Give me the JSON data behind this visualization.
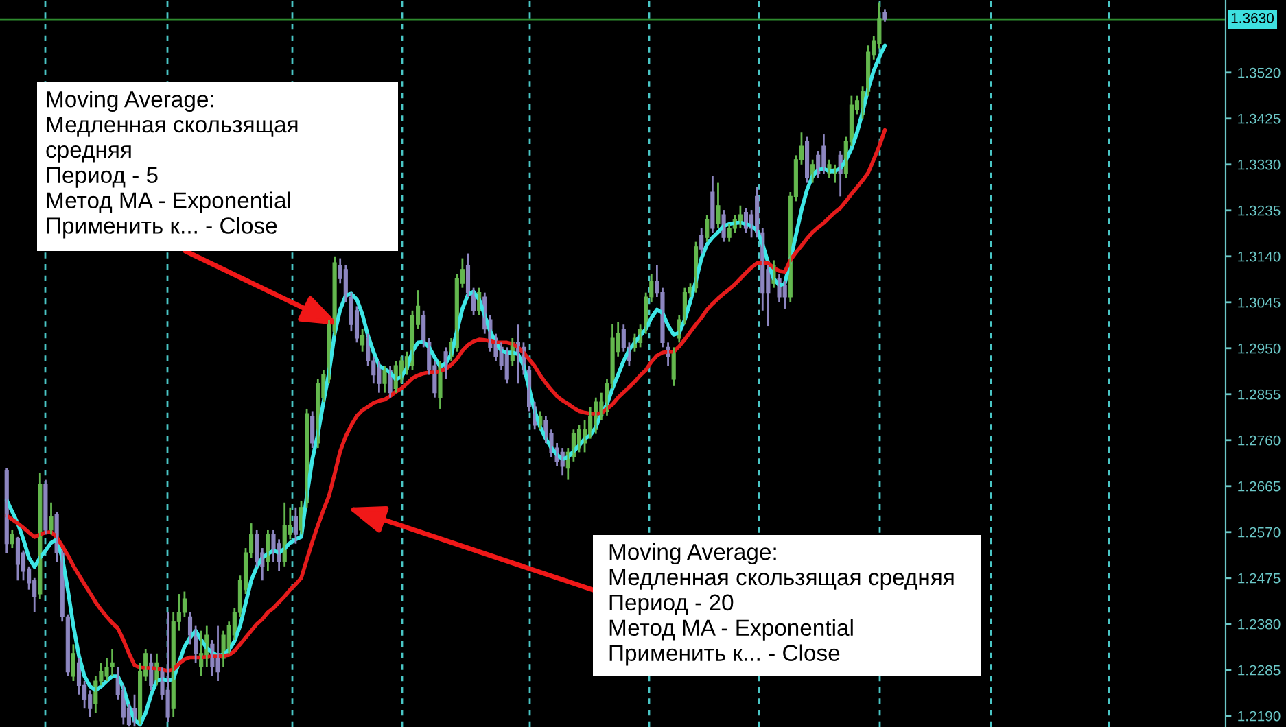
{
  "chart_data": {
    "type": "candlestick",
    "categories": [
      null,
      null,
      null,
      null,
      null,
      null,
      null,
      null,
      null,
      null,
      null,
      null,
      null,
      null,
      null,
      null,
      null,
      null,
      null,
      null,
      null,
      null,
      null,
      null,
      null,
      null,
      null,
      null,
      null,
      null,
      null,
      null,
      null,
      null,
      null,
      null,
      null,
      null,
      null,
      null,
      null,
      null,
      null,
      null,
      null,
      null,
      null,
      null,
      null,
      null,
      null,
      null,
      null,
      null,
      null,
      null,
      null,
      null,
      null,
      null,
      null,
      null,
      null,
      null,
      null,
      null,
      null,
      null,
      null,
      null,
      null,
      null,
      null,
      null,
      null,
      null,
      null,
      null,
      null,
      null,
      null,
      null,
      null,
      null,
      null,
      null,
      null,
      null,
      null,
      null,
      null,
      null,
      null,
      null,
      null,
      null,
      null,
      null,
      null,
      null,
      null,
      null,
      null,
      null,
      null,
      null,
      null,
      null,
      null,
      null,
      null,
      null,
      null,
      null,
      null,
      null,
      null,
      null,
      null,
      null,
      null,
      null,
      null,
      null,
      null,
      null,
      null,
      null,
      null,
      null,
      null,
      null,
      null,
      null,
      null,
      null,
      null,
      null,
      null,
      null,
      null,
      null,
      null,
      null,
      null,
      null,
      null,
      null,
      null,
      null,
      null,
      null,
      null,
      null,
      null,
      null,
      null,
      null,
      null
    ],
    "ohlc": [
      [
        1.2697,
        1.2702,
        1.2527,
        1.2546
      ],
      [
        1.2546,
        1.2574,
        1.2537,
        1.2565
      ],
      [
        1.2556,
        1.256,
        1.247,
        1.2503
      ],
      [
        1.2527,
        1.2532,
        1.247,
        1.2489
      ],
      [
        1.2494,
        1.2499,
        1.2451,
        1.2465
      ],
      [
        1.247,
        1.2475,
        1.2404,
        1.2437
      ],
      [
        1.2442,
        1.2692,
        1.2432,
        1.2669
      ],
      [
        1.2669,
        1.2678,
        1.2565,
        1.2574
      ],
      [
        1.2574,
        1.2631,
        1.2565,
        1.2602
      ],
      [
        1.2607,
        1.2612,
        1.2508,
        1.2527
      ],
      [
        1.2527,
        1.2532,
        1.2385,
        1.2395
      ],
      [
        1.2395,
        1.24,
        1.2272,
        1.2281
      ],
      [
        1.2272,
        1.2338,
        1.2262,
        1.2319
      ],
      [
        1.23,
        1.231,
        1.2234,
        1.2253
      ],
      [
        1.2253,
        1.2262,
        1.2205,
        1.2224
      ],
      [
        1.2234,
        1.2243,
        1.2187,
        1.2205
      ],
      [
        1.2215,
        1.2272,
        1.2196,
        1.2262
      ],
      [
        1.2262,
        1.23,
        1.2253,
        1.2281
      ],
      [
        1.2272,
        1.2309,
        1.2262,
        1.2291
      ],
      [
        1.2291,
        1.2328,
        1.2272,
        1.23
      ],
      [
        1.2272,
        1.2291,
        1.2224,
        1.2234
      ],
      [
        1.2243,
        1.2253,
        1.2172,
        1.2187
      ],
      [
        1.2205,
        1.2215,
        1.2168,
        1.2172
      ],
      [
        1.2205,
        1.2234,
        1.2168,
        1.2177
      ],
      [
        1.2177,
        1.23,
        1.2172,
        1.2281
      ],
      [
        1.2272,
        1.2328,
        1.2262,
        1.2319
      ],
      [
        1.23,
        1.2319,
        1.2243,
        1.2253
      ],
      [
        1.2262,
        1.2319,
        1.2253,
        1.23
      ],
      [
        1.2281,
        1.229,
        1.2224,
        1.2234
      ],
      [
        1.2243,
        1.2404,
        1.2177,
        1.2187
      ],
      [
        1.2205,
        1.2404,
        1.2187,
        1.2385
      ],
      [
        1.2385,
        1.2442,
        1.2366,
        1.2404
      ],
      [
        1.2404,
        1.2447,
        1.2395,
        1.2432
      ],
      [
        1.2395,
        1.2404,
        1.2338,
        1.2357
      ],
      [
        1.2366,
        1.2376,
        1.23,
        1.2319
      ],
      [
        1.2291,
        1.2366,
        1.2272,
        1.2319
      ],
      [
        1.2309,
        1.2376,
        1.2291,
        1.2357
      ],
      [
        1.2338,
        1.2347,
        1.2272,
        1.2291
      ],
      [
        1.2319,
        1.2376,
        1.2262,
        1.2281
      ],
      [
        1.2309,
        1.2366,
        1.2291,
        1.2357
      ],
      [
        1.2328,
        1.2385,
        1.2319,
        1.2376
      ],
      [
        1.2357,
        1.2413,
        1.2347,
        1.2404
      ],
      [
        1.2404,
        1.248,
        1.2395,
        1.247
      ],
      [
        1.2451,
        1.2537,
        1.2442,
        1.2527
      ],
      [
        1.2527,
        1.2588,
        1.2517,
        1.2565
      ],
      [
        1.2565,
        1.2574,
        1.2499,
        1.2508
      ],
      [
        1.2527,
        1.2537,
        1.247,
        1.2499
      ],
      [
        1.2508,
        1.2574,
        1.2489,
        1.2565
      ],
      [
        1.2565,
        1.2574,
        1.2508,
        1.2527
      ],
      [
        1.2546,
        1.2555,
        1.2489,
        1.2508
      ],
      [
        1.2508,
        1.2631,
        1.2499,
        1.2583
      ],
      [
        1.2565,
        1.2621,
        1.2555,
        1.2583
      ],
      [
        1.2602,
        1.2621,
        1.2546,
        1.2565
      ],
      [
        1.2574,
        1.2635,
        1.2565,
        1.2621
      ],
      [
        1.263,
        1.2825,
        1.2621,
        1.2815
      ],
      [
        1.281,
        1.282,
        1.2744,
        1.2754
      ],
      [
        1.2754,
        1.2886,
        1.2744,
        1.2877
      ],
      [
        1.2848,
        1.2905,
        1.2839,
        1.2895
      ],
      [
        1.2886,
        1.3009,
        1.2877,
        1.2999
      ],
      [
        1.2985,
        1.314,
        1.2976,
        1.3127
      ],
      [
        1.3122,
        1.3136,
        1.3084,
        1.3094
      ],
      [
        1.3113,
        1.3122,
        1.3046,
        1.3056
      ],
      [
        1.3056,
        1.3065,
        1.2985,
        1.2999
      ],
      [
        1.3028,
        1.3037,
        1.2962,
        1.2971
      ],
      [
        1.2957,
        1.299,
        1.2943,
        1.2976
      ],
      [
        1.2971,
        1.298,
        1.2914,
        1.2924
      ],
      [
        1.2924,
        1.2933,
        1.2877,
        1.2895
      ],
      [
        1.2914,
        1.2924,
        1.2858,
        1.2877
      ],
      [
        1.2877,
        1.2914,
        1.2858,
        1.2905
      ],
      [
        1.2905,
        1.2914,
        1.2848,
        1.2858
      ],
      [
        1.2867,
        1.2924,
        1.2858,
        1.2914
      ],
      [
        1.2886,
        1.2933,
        1.2877,
        1.2924
      ],
      [
        1.2905,
        1.2943,
        1.2895,
        1.2933
      ],
      [
        1.2914,
        1.3028,
        1.2905,
        1.3018
      ],
      [
        1.2999,
        1.307,
        1.299,
        1.3037
      ],
      [
        1.3018,
        1.3028,
        1.2952,
        1.2962
      ],
      [
        1.2962,
        1.2971,
        1.2895,
        1.2905
      ],
      [
        1.2914,
        1.2924,
        1.2848,
        1.2858
      ],
      [
        1.2848,
        1.2924,
        1.2825,
        1.2914
      ],
      [
        1.2943,
        1.2952,
        1.2886,
        1.2905
      ],
      [
        1.2933,
        1.2971,
        1.2924,
        1.2962
      ],
      [
        1.2952,
        1.3103,
        1.2943,
        1.3094
      ],
      [
        1.3084,
        1.3136,
        1.3075,
        1.3113
      ],
      [
        1.3122,
        1.3146,
        1.3056,
        1.3065
      ],
      [
        1.3065,
        1.3075,
        1.3018,
        1.3028
      ],
      [
        1.3028,
        1.3075,
        1.3018,
        1.3065
      ],
      [
        1.3056,
        1.3065,
        1.298,
        1.299
      ],
      [
        1.3009,
        1.3018,
        1.2943,
        1.2952
      ],
      [
        1.2971,
        1.298,
        1.2924,
        1.2933
      ],
      [
        1.2952,
        1.2962,
        1.2905,
        1.2914
      ],
      [
        1.2943,
        1.2952,
        1.2877,
        1.2886
      ],
      [
        1.2924,
        1.2971,
        1.2914,
        1.2962
      ],
      [
        1.2962,
        1.2999,
        1.2877,
        1.2943
      ],
      [
        1.2952,
        1.2962,
        1.2895,
        1.2905
      ],
      [
        1.2905,
        1.2914,
        1.282,
        1.2829
      ],
      [
        1.2829,
        1.2839,
        1.2782,
        1.2791
      ],
      [
        1.2791,
        1.282,
        1.2782,
        1.281
      ],
      [
        1.2801,
        1.281,
        1.2754,
        1.2763
      ],
      [
        1.2773,
        1.2782,
        1.2725,
        1.2735
      ],
      [
        1.2744,
        1.2754,
        1.2706,
        1.2716
      ],
      [
        1.2735,
        1.2744,
        1.2687,
        1.2706
      ],
      [
        1.2702,
        1.2744,
        1.2678,
        1.2735
      ],
      [
        1.2725,
        1.2782,
        1.2716,
        1.2773
      ],
      [
        1.2744,
        1.2791,
        1.2735,
        1.2782
      ],
      [
        1.2754,
        1.2801,
        1.2735,
        1.2782
      ],
      [
        1.2773,
        1.2829,
        1.2763,
        1.281
      ],
      [
        1.2782,
        1.2848,
        1.2773,
        1.2839
      ],
      [
        1.2811,
        1.2858,
        1.2801,
        1.2839
      ],
      [
        1.282,
        1.2886,
        1.2811,
        1.2877
      ],
      [
        1.2877,
        1.3,
        1.2867,
        1.2971
      ],
      [
        1.2943,
        1.3004,
        1.2933,
        1.298
      ],
      [
        1.299,
        1.2999,
        1.2943,
        1.2952
      ],
      [
        1.2952,
        1.2962,
        1.2914,
        1.2924
      ],
      [
        1.2952,
        1.298,
        1.2943,
        1.2971
      ],
      [
        1.2962,
        1.2999,
        1.2952,
        1.299
      ],
      [
        1.299,
        1.3065,
        1.298,
        1.3056
      ],
      [
        1.3056,
        1.3103,
        1.3046,
        1.3089
      ],
      [
        1.3089,
        1.3122,
        1.3056,
        1.3065
      ],
      [
        1.3065,
        1.3075,
        1.2952,
        1.2962
      ],
      [
        1.2952,
        1.2962,
        1.2914,
        1.2933
      ],
      [
        1.2886,
        1.2952,
        1.2872,
        1.2943
      ],
      [
        1.2971,
        1.3018,
        1.2962,
        1.3009
      ],
      [
        1.3009,
        1.3075,
        1.2999,
        1.3065
      ],
      [
        1.3065,
        1.3084,
        1.3056,
        1.3075
      ],
      [
        1.3075,
        1.317,
        1.3065,
        1.316
      ],
      [
        1.3184,
        1.3198,
        1.3146,
        1.3155
      ],
      [
        1.3179,
        1.3226,
        1.317,
        1.3217
      ],
      [
        1.3273,
        1.3306,
        1.3189,
        1.3198
      ],
      [
        1.3207,
        1.3292,
        1.3198,
        1.3245
      ],
      [
        1.3226,
        1.3236,
        1.317,
        1.3179
      ],
      [
        1.3179,
        1.3207,
        1.317,
        1.3198
      ],
      [
        1.3198,
        1.3226,
        1.3189,
        1.3217
      ],
      [
        1.3207,
        1.3245,
        1.3198,
        1.3226
      ],
      [
        1.3231,
        1.324,
        1.3189,
        1.3198
      ],
      [
        1.3226,
        1.3236,
        1.3179,
        1.3198
      ],
      [
        1.3264,
        1.3283,
        1.3179,
        1.3189
      ],
      [
        1.3189,
        1.3198,
        1.3028,
        1.3065
      ],
      [
        1.3113,
        1.3122,
        1.2995,
        1.3065
      ],
      [
        1.3084,
        1.3132,
        1.3075,
        1.3122
      ],
      [
        1.3094,
        1.3103,
        1.3046,
        1.3056
      ],
      [
        1.308,
        1.3089,
        1.3032,
        1.3056
      ],
      [
        1.3056,
        1.3273,
        1.3046,
        1.3264
      ],
      [
        1.3264,
        1.3349,
        1.3254,
        1.334
      ],
      [
        1.334,
        1.3396,
        1.333,
        1.3368
      ],
      [
        1.3377,
        1.3387,
        1.3292,
        1.3302
      ],
      [
        1.3302,
        1.334,
        1.3292,
        1.333
      ],
      [
        1.3349,
        1.3358,
        1.3302,
        1.3311
      ],
      [
        1.3368,
        1.3392,
        1.3311,
        1.3321
      ],
      [
        1.3311,
        1.334,
        1.3302,
        1.333
      ],
      [
        1.3311,
        1.333,
        1.3292,
        1.3321
      ],
      [
        1.3349,
        1.3358,
        1.3264,
        1.3311
      ],
      [
        1.3311,
        1.3387,
        1.3302,
        1.3377
      ],
      [
        1.3377,
        1.3472,
        1.3368,
        1.3453
      ],
      [
        1.3443,
        1.3472,
        1.3434,
        1.3462
      ],
      [
        1.3434,
        1.3491,
        1.3425,
        1.3481
      ],
      [
        1.3481,
        1.3576,
        1.3472,
        1.3562
      ],
      [
        1.3557,
        1.3595,
        1.3547,
        1.3585
      ],
      [
        1.358,
        1.3665,
        1.357,
        1.3632
      ],
      [
        1.3645,
        1.3651,
        1.3625,
        1.363
      ]
    ],
    "colors": [
      "#8d86c0",
      "#64b84e",
      "#8d86c0",
      "#8d86c0",
      "#8d86c0",
      "#8d86c0",
      "#64b84e",
      "#8d86c0",
      "#64b84e",
      "#8d86c0",
      "#8d86c0",
      "#8d86c0",
      "#64b84e",
      "#8d86c0",
      "#8d86c0",
      "#8d86c0",
      "#64b84e",
      "#64b84e",
      "#64b84e",
      "#64b84e",
      "#8d86c0",
      "#8d86c0",
      "#8d86c0",
      "#8d86c0",
      "#64b84e",
      "#64b84e",
      "#8d86c0",
      "#64b84e",
      "#8d86c0",
      "#8d86c0",
      "#64b84e",
      "#64b84e",
      "#64b84e",
      "#8d86c0",
      "#8d86c0",
      "#64b84e",
      "#64b84e",
      "#8d86c0",
      "#8d86c0",
      "#64b84e",
      "#64b84e",
      "#64b84e",
      "#64b84e",
      "#64b84e",
      "#64b84e",
      "#8d86c0",
      "#8d86c0",
      "#64b84e",
      "#8d86c0",
      "#8d86c0",
      "#64b84e",
      "#64b84e",
      "#8d86c0",
      "#64b84e",
      "#64b84e",
      "#8d86c0",
      "#64b84e",
      "#64b84e",
      "#64b84e",
      "#64b84e",
      "#8d86c0",
      "#8d86c0",
      "#8d86c0",
      "#8d86c0",
      "#64b84e",
      "#8d86c0",
      "#8d86c0",
      "#8d86c0",
      "#64b84e",
      "#8d86c0",
      "#64b84e",
      "#64b84e",
      "#64b84e",
      "#64b84e",
      "#64b84e",
      "#8d86c0",
      "#8d86c0",
      "#8d86c0",
      "#64b84e",
      "#8d86c0",
      "#64b84e",
      "#64b84e",
      "#64b84e",
      "#8d86c0",
      "#8d86c0",
      "#64b84e",
      "#8d86c0",
      "#8d86c0",
      "#8d86c0",
      "#8d86c0",
      "#8d86c0",
      "#64b84e",
      "#8d86c0",
      "#8d86c0",
      "#8d86c0",
      "#8d86c0",
      "#64b84e",
      "#8d86c0",
      "#8d86c0",
      "#8d86c0",
      "#8d86c0",
      "#64b84e",
      "#64b84e",
      "#64b84e",
      "#64b84e",
      "#64b84e",
      "#64b84e",
      "#64b84e",
      "#64b84e",
      "#64b84e",
      "#64b84e",
      "#8d86c0",
      "#8d86c0",
      "#64b84e",
      "#64b84e",
      "#64b84e",
      "#64b84e",
      "#8d86c0",
      "#8d86c0",
      "#8d86c0",
      "#64b84e",
      "#64b84e",
      "#64b84e",
      "#64b84e",
      "#64b84e",
      "#8d86c0",
      "#64b84e",
      "#8d86c0",
      "#64b84e",
      "#8d86c0",
      "#64b84e",
      "#64b84e",
      "#64b84e",
      "#8d86c0",
      "#8d86c0",
      "#8d86c0",
      "#8d86c0",
      "#8d86c0",
      "#64b84e",
      "#8d86c0",
      "#8d86c0",
      "#64b84e",
      "#64b84e",
      "#64b84e",
      "#8d86c0",
      "#64b84e",
      "#8d86c0",
      "#8d86c0",
      "#64b84e",
      "#64b84e",
      "#8d86c0",
      "#64b84e",
      "#64b84e",
      "#64b84e",
      "#64b84e",
      "#64b84e",
      "#64b84e",
      "#64b84e",
      "#8d86c0"
    ],
    "series": [
      {
        "type": "line",
        "color": "#3ee6e6",
        "values": [
          1.2636,
          1.2612,
          1.2588,
          1.2555,
          1.2517,
          1.2498,
          1.2517,
          1.2532,
          1.2548,
          1.2555,
          1.2517,
          1.2451,
          1.2376,
          1.2314,
          1.2272,
          1.2251,
          1.2243,
          1.2251,
          1.2262,
          1.2272,
          1.2272,
          1.2248,
          1.221,
          1.2182,
          1.2172,
          1.2196,
          1.2234,
          1.2262,
          1.2267,
          1.2262,
          1.2267,
          1.23,
          1.2333,
          1.2352,
          1.2366,
          1.2347,
          1.233,
          1.2321,
          1.2314,
          1.2317,
          1.2326,
          1.2345,
          1.2376,
          1.2423,
          1.247,
          1.2498,
          1.2517,
          1.2525,
          1.2532,
          1.2527,
          1.2536,
          1.2548,
          1.2555,
          1.256,
          1.2645,
          1.2721,
          1.2773,
          1.2839,
          1.29,
          1.298,
          1.303,
          1.3059,
          1.3063,
          1.3051,
          1.302,
          1.2976,
          1.2943,
          1.2914,
          1.2907,
          1.29,
          1.2886,
          1.2891,
          1.2909,
          1.2943,
          1.2962,
          1.2963,
          1.2952,
          1.2931,
          1.2912,
          1.2919,
          1.2938,
          1.2985,
          1.3032,
          1.3061,
          1.3067,
          1.3051,
          1.3018,
          1.2985,
          1.2962,
          1.2945,
          1.2941,
          1.2941,
          1.2938,
          1.2914,
          1.2867,
          1.282,
          1.2787,
          1.2763,
          1.2744,
          1.273,
          1.2721,
          1.2725,
          1.2737,
          1.2749,
          1.2763,
          1.277,
          1.2787,
          1.2815,
          1.2834,
          1.2867,
          1.2895,
          1.2924,
          1.2947,
          1.2962,
          1.2976,
          1.299,
          1.3013,
          1.303,
          1.3023,
          1.2997,
          1.2978,
          1.2982,
          1.3009,
          1.3047,
          1.3089,
          1.3136,
          1.3165,
          1.3179,
          1.319,
          1.3203,
          1.3207,
          1.3209,
          1.321,
          1.3207,
          1.3203,
          1.3193,
          1.3165,
          1.3127,
          1.3094,
          1.308,
          1.3084,
          1.3132,
          1.3184,
          1.3236,
          1.3278,
          1.3306,
          1.3319,
          1.3321,
          1.3316,
          1.3316,
          1.3322,
          1.3339,
          1.3363,
          1.3396,
          1.3439,
          1.3486,
          1.3524,
          1.3552,
          1.3576
        ]
      },
      {
        "type": "line",
        "color": "#e41b1b",
        "values": [
          1.2604,
          1.2596,
          1.2588,
          1.2579,
          1.2569,
          1.256,
          1.2565,
          1.2569,
          1.257,
          1.256,
          1.2541,
          1.2522,
          1.25,
          1.2481,
          1.2462,
          1.2444,
          1.2425,
          1.2409,
          1.2395,
          1.2382,
          1.2371,
          1.2347,
          1.2319,
          1.2295,
          1.229,
          1.2289,
          1.2289,
          1.2288,
          1.2286,
          1.2283,
          1.2286,
          1.2298,
          1.2307,
          1.2311,
          1.2311,
          1.2311,
          1.2312,
          1.2313,
          1.2313,
          1.2314,
          1.2316,
          1.2324,
          1.2338,
          1.2352,
          1.2366,
          1.238,
          1.239,
          1.2404,
          1.2413,
          1.2425,
          1.2437,
          1.2451,
          1.2462,
          1.2475,
          1.2513,
          1.255,
          1.2584,
          1.2616,
          1.2645,
          1.269,
          1.2737,
          1.2768,
          1.2791,
          1.281,
          1.2822,
          1.2829,
          1.2837,
          1.2841,
          1.2844,
          1.2851,
          1.286,
          1.2867,
          1.2877,
          1.2888,
          1.2894,
          1.2898,
          1.29,
          1.29,
          1.2903,
          1.2907,
          1.2916,
          1.2928,
          1.2945,
          1.2957,
          1.2964,
          1.2968,
          1.2967,
          1.2965,
          1.2962,
          1.2962,
          1.2962,
          1.2959,
          1.2952,
          1.2941,
          1.2927,
          1.2913,
          1.2894,
          1.2878,
          1.2864,
          1.2851,
          1.2842,
          1.2835,
          1.2827,
          1.282,
          1.2817,
          1.2815,
          1.2815,
          1.2816,
          1.2825,
          1.2834,
          1.2848,
          1.2859,
          1.287,
          1.2881,
          1.2894,
          1.2905,
          1.2922,
          1.2935,
          1.2941,
          1.2943,
          1.2943,
          1.2954,
          1.2968,
          1.2984,
          1.2999,
          1.3013,
          1.303,
          1.3042,
          1.3053,
          1.3063,
          1.3072,
          1.3082,
          1.3094,
          1.3106,
          1.3117,
          1.3126,
          1.3127,
          1.3126,
          1.3116,
          1.311,
          1.3108,
          1.3132,
          1.3148,
          1.3162,
          1.3177,
          1.319,
          1.32,
          1.3209,
          1.322,
          1.3231,
          1.324,
          1.3254,
          1.3269,
          1.3283,
          1.3297,
          1.3313,
          1.334,
          1.3368,
          1.3401
        ]
      }
    ],
    "ylim": [
      1.2167,
      1.367
    ],
    "yticks": [
      {
        "value": 1.219,
        "label": "1.2190"
      },
      1.2285,
      {
        "value": 1.238,
        "label": "1.2380"
      },
      1.2475,
      {
        "value": 1.257,
        "label": "1.2570"
      },
      1.2665,
      {
        "value": 1.276,
        "label": "1.2760"
      },
      1.2855,
      {
        "value": 1.295,
        "label": "1.2950"
      },
      1.3045,
      {
        "value": 1.314,
        "label": "1.3140"
      },
      1.3235,
      {
        "value": 1.333,
        "label": "1.3330"
      },
      1.3425,
      {
        "value": 1.352,
        "label": "1.3520"
      }
    ],
    "tick_labels": "y",
    "ref_lines": [
      {
        "axis": "y",
        "value": 1.363,
        "label": "1.3630",
        "color": "#2e8b2e"
      }
    ],
    "annotations": [
      "Moving Average:\nМедленная скользящая\nсредняя\nПериод - 5\nМетод MA - Exponential\nПрименить к... - Close",
      "Moving Average:\nМедленная скользящая средняя\nПериод - 20\nМетод MA - Exponential\nПрименить к... - Close"
    ]
  }
}
